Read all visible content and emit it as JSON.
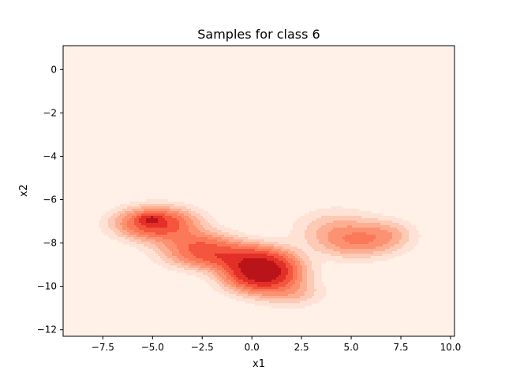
{
  "chart_data": {
    "type": "heatmap",
    "subtype": "filled-contour density (KDE)",
    "title": "Samples for class 6",
    "xlabel": "x1",
    "ylabel": "x2",
    "xlim": [
      -9.5,
      10.2
    ],
    "ylim": [
      -12.3,
      1.1
    ],
    "x_ticks": [
      -7.5,
      -5.0,
      -2.5,
      0.0,
      2.5,
      5.0,
      7.5,
      10.0
    ],
    "x_tick_labels": [
      "−7.5",
      "−5.0",
      "−2.5",
      "0.0",
      "2.5",
      "5.0",
      "7.5",
      "10.0"
    ],
    "y_ticks": [
      0,
      -2,
      -4,
      -6,
      -8,
      -10,
      -12
    ],
    "y_tick_labels": [
      "0",
      "−2",
      "−4",
      "−6",
      "−8",
      "−10",
      "−12"
    ],
    "colormap": "Reds",
    "background_color": "#fff0e8",
    "grid": false,
    "legend": "none",
    "density_components": [
      {
        "x": 0.5,
        "y": -9.3,
        "sx": 1.1,
        "sy": 0.55,
        "weight": 1.0
      },
      {
        "x": -1.6,
        "y": -8.6,
        "sx": 1.5,
        "sy": 0.4,
        "weight": 0.4
      },
      {
        "x": -4.8,
        "y": -7.1,
        "sx": 1.2,
        "sy": 0.45,
        "weight": 0.55
      },
      {
        "x": -2.8,
        "y": -8.0,
        "sx": 1.2,
        "sy": 0.4,
        "weight": 0.25
      },
      {
        "x": 5.3,
        "y": -7.9,
        "sx": 1.3,
        "sy": 0.5,
        "weight": 0.22
      },
      {
        "x": 4.2,
        "y": -7.3,
        "sx": 1.3,
        "sy": 0.6,
        "weight": 0.1
      },
      {
        "x": 6.8,
        "y": -7.6,
        "sx": 0.9,
        "sy": 0.45,
        "weight": 0.1
      },
      {
        "x": 2.0,
        "y": -10.3,
        "sx": 1.0,
        "sy": 0.4,
        "weight": 0.12
      },
      {
        "x": -5.1,
        "y": -6.9,
        "sx": 0.35,
        "sy": 0.15,
        "weight": 0.35
      }
    ],
    "contour_levels": [
      0.03,
      0.07,
      0.12,
      0.18,
      0.26,
      0.36,
      0.5,
      0.7
    ],
    "contour_colors": [
      "#fee2d5",
      "#fdcab5",
      "#fcaf93",
      "#fc9272",
      "#fb7858",
      "#f4553d",
      "#e32f27",
      "#b91419"
    ]
  }
}
